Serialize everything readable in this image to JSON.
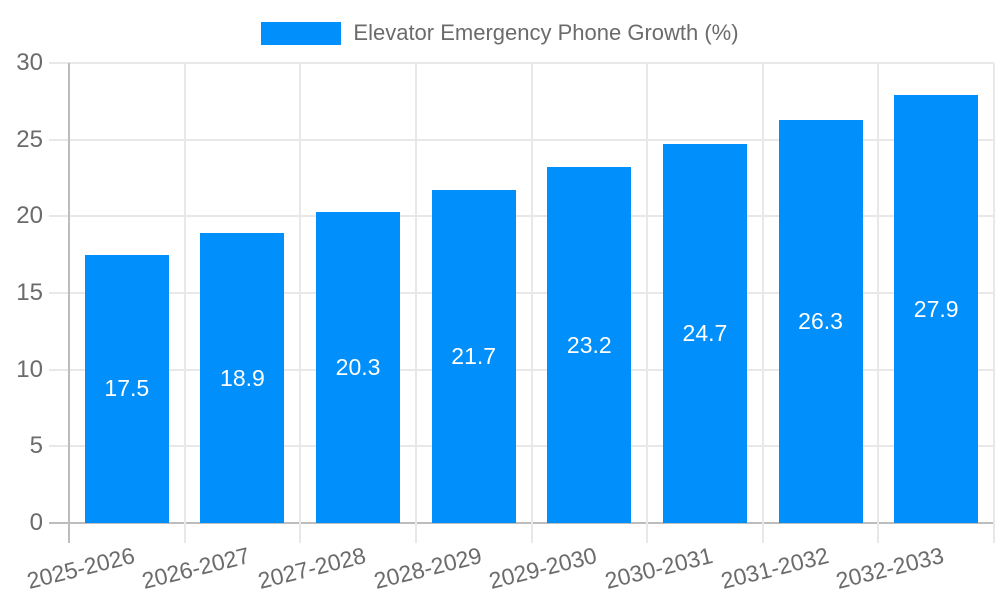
{
  "legend": {
    "series_label": "Elevator Emergency Phone Growth (%)",
    "swatch_color": "#008FFB"
  },
  "chart_data": {
    "type": "bar",
    "title": "Elevator Emergency Phone Growth (%)",
    "categories": [
      "2025-2026",
      "2026-2027",
      "2027-2028",
      "2028-2029",
      "2029-2030",
      "2030-2031",
      "2031-2032",
      "2032-2033"
    ],
    "series": [
      {
        "name": "Elevator Emergency Phone Growth (%)",
        "values": [
          17.5,
          18.9,
          20.3,
          21.7,
          23.2,
          24.7,
          26.3,
          27.9
        ]
      }
    ],
    "values": [
      17.5,
      18.9,
      20.3,
      21.7,
      23.2,
      24.7,
      26.3,
      27.9
    ],
    "value_labels": [
      "17.5",
      "18.9",
      "20.3",
      "21.7",
      "23.2",
      "24.7",
      "26.3",
      "27.9"
    ],
    "xlabel": "",
    "ylabel": "",
    "ylim": [
      0,
      30
    ],
    "yticks": [
      0,
      5,
      10,
      15,
      20,
      25,
      30
    ],
    "grid": true,
    "legend_position": "top",
    "bar_color": "#008FFB",
    "value_label_color": "#ffffff",
    "axis_text_color": "#6b6b6b",
    "gridline_color": "#e8e8e8",
    "zero_line_color": "#bdbdbd",
    "x_label_rotation_deg": -14
  }
}
